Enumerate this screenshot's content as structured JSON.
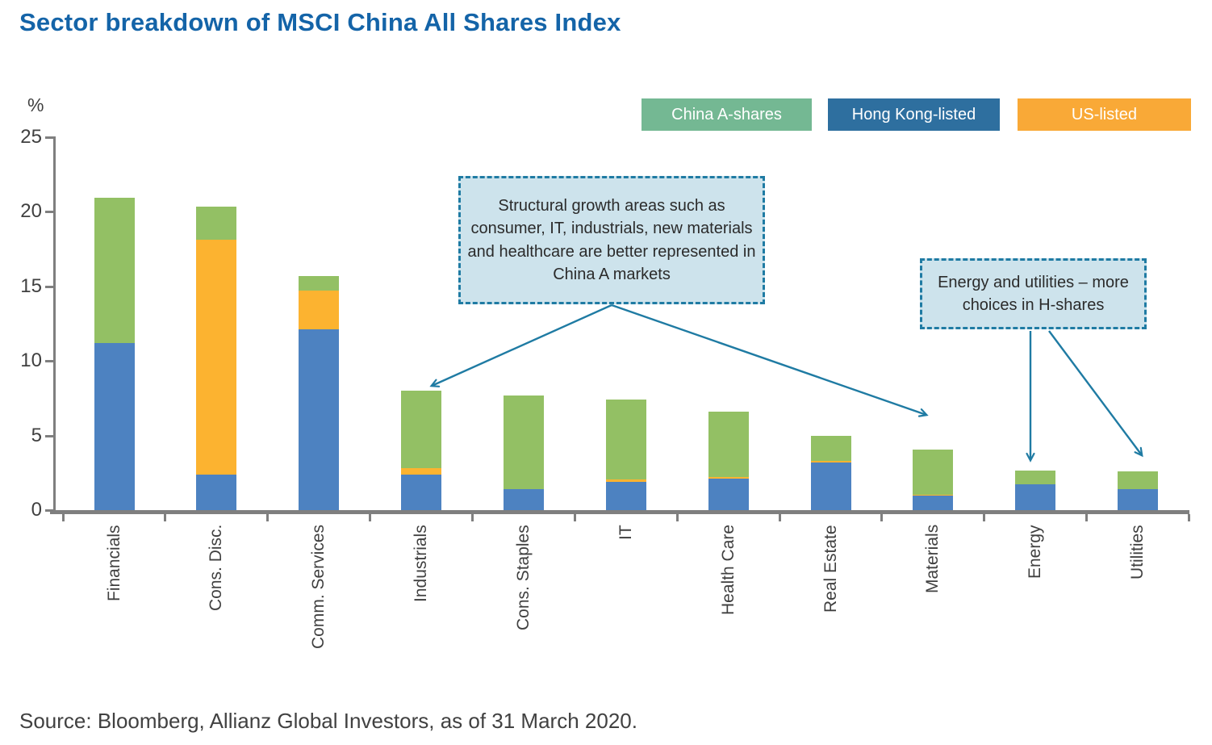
{
  "title": "Sector breakdown of MSCI China All Shares Index",
  "y_axis": {
    "unit_label": "%",
    "ticks": [
      0,
      5,
      10,
      15,
      20,
      25
    ]
  },
  "legend": [
    {
      "label": "China A-shares",
      "color": "#74b893"
    },
    {
      "label": "Hong Kong-listed",
      "color": "#2e6f9f"
    },
    {
      "label": "US-listed",
      "color": "#f9a937"
    }
  ],
  "annotations": [
    {
      "text": "Structural growth areas such as consumer, IT, industrials, new materials and healthcare are better represented in China A markets"
    },
    {
      "text": "Energy and utilities – more choices in H-shares"
    }
  ],
  "source": "Source: Bloomberg, Allianz Global Investors, as of 31 March 2020.",
  "chart_data": {
    "type": "bar",
    "stacked": true,
    "title": "Sector breakdown of MSCI China All Shares Index",
    "ylabel": "%",
    "ylim": [
      0,
      25
    ],
    "grid": false,
    "legend_position": "top-right",
    "categories": [
      "Financials",
      "Cons. Disc.",
      "Comm. Services",
      "Industrials",
      "Cons. Staples",
      "IT",
      "Health Care",
      "Real Estate",
      "Materials",
      "Energy",
      "Utilities"
    ],
    "series": [
      {
        "name": "Hong Kong-listed",
        "color": "#4d82c1",
        "values": [
          11.2,
          2.4,
          12.1,
          2.4,
          1.4,
          1.9,
          2.1,
          3.2,
          1.0,
          1.75,
          1.4
        ]
      },
      {
        "name": "US-listed",
        "color": "#fcb330",
        "values": [
          0,
          15.7,
          2.6,
          0.4,
          0,
          0.15,
          0.1,
          0.1,
          0.05,
          0,
          0
        ]
      },
      {
        "name": "China A-shares",
        "color": "#93c064",
        "values": [
          9.7,
          2.2,
          1.0,
          5.2,
          6.3,
          5.35,
          4.4,
          1.7,
          3.0,
          0.9,
          1.2
        ]
      }
    ],
    "totals": [
      20.9,
      20.3,
      15.7,
      8.0,
      7.7,
      7.4,
      6.6,
      5.0,
      4.05,
      2.65,
      2.6
    ]
  }
}
